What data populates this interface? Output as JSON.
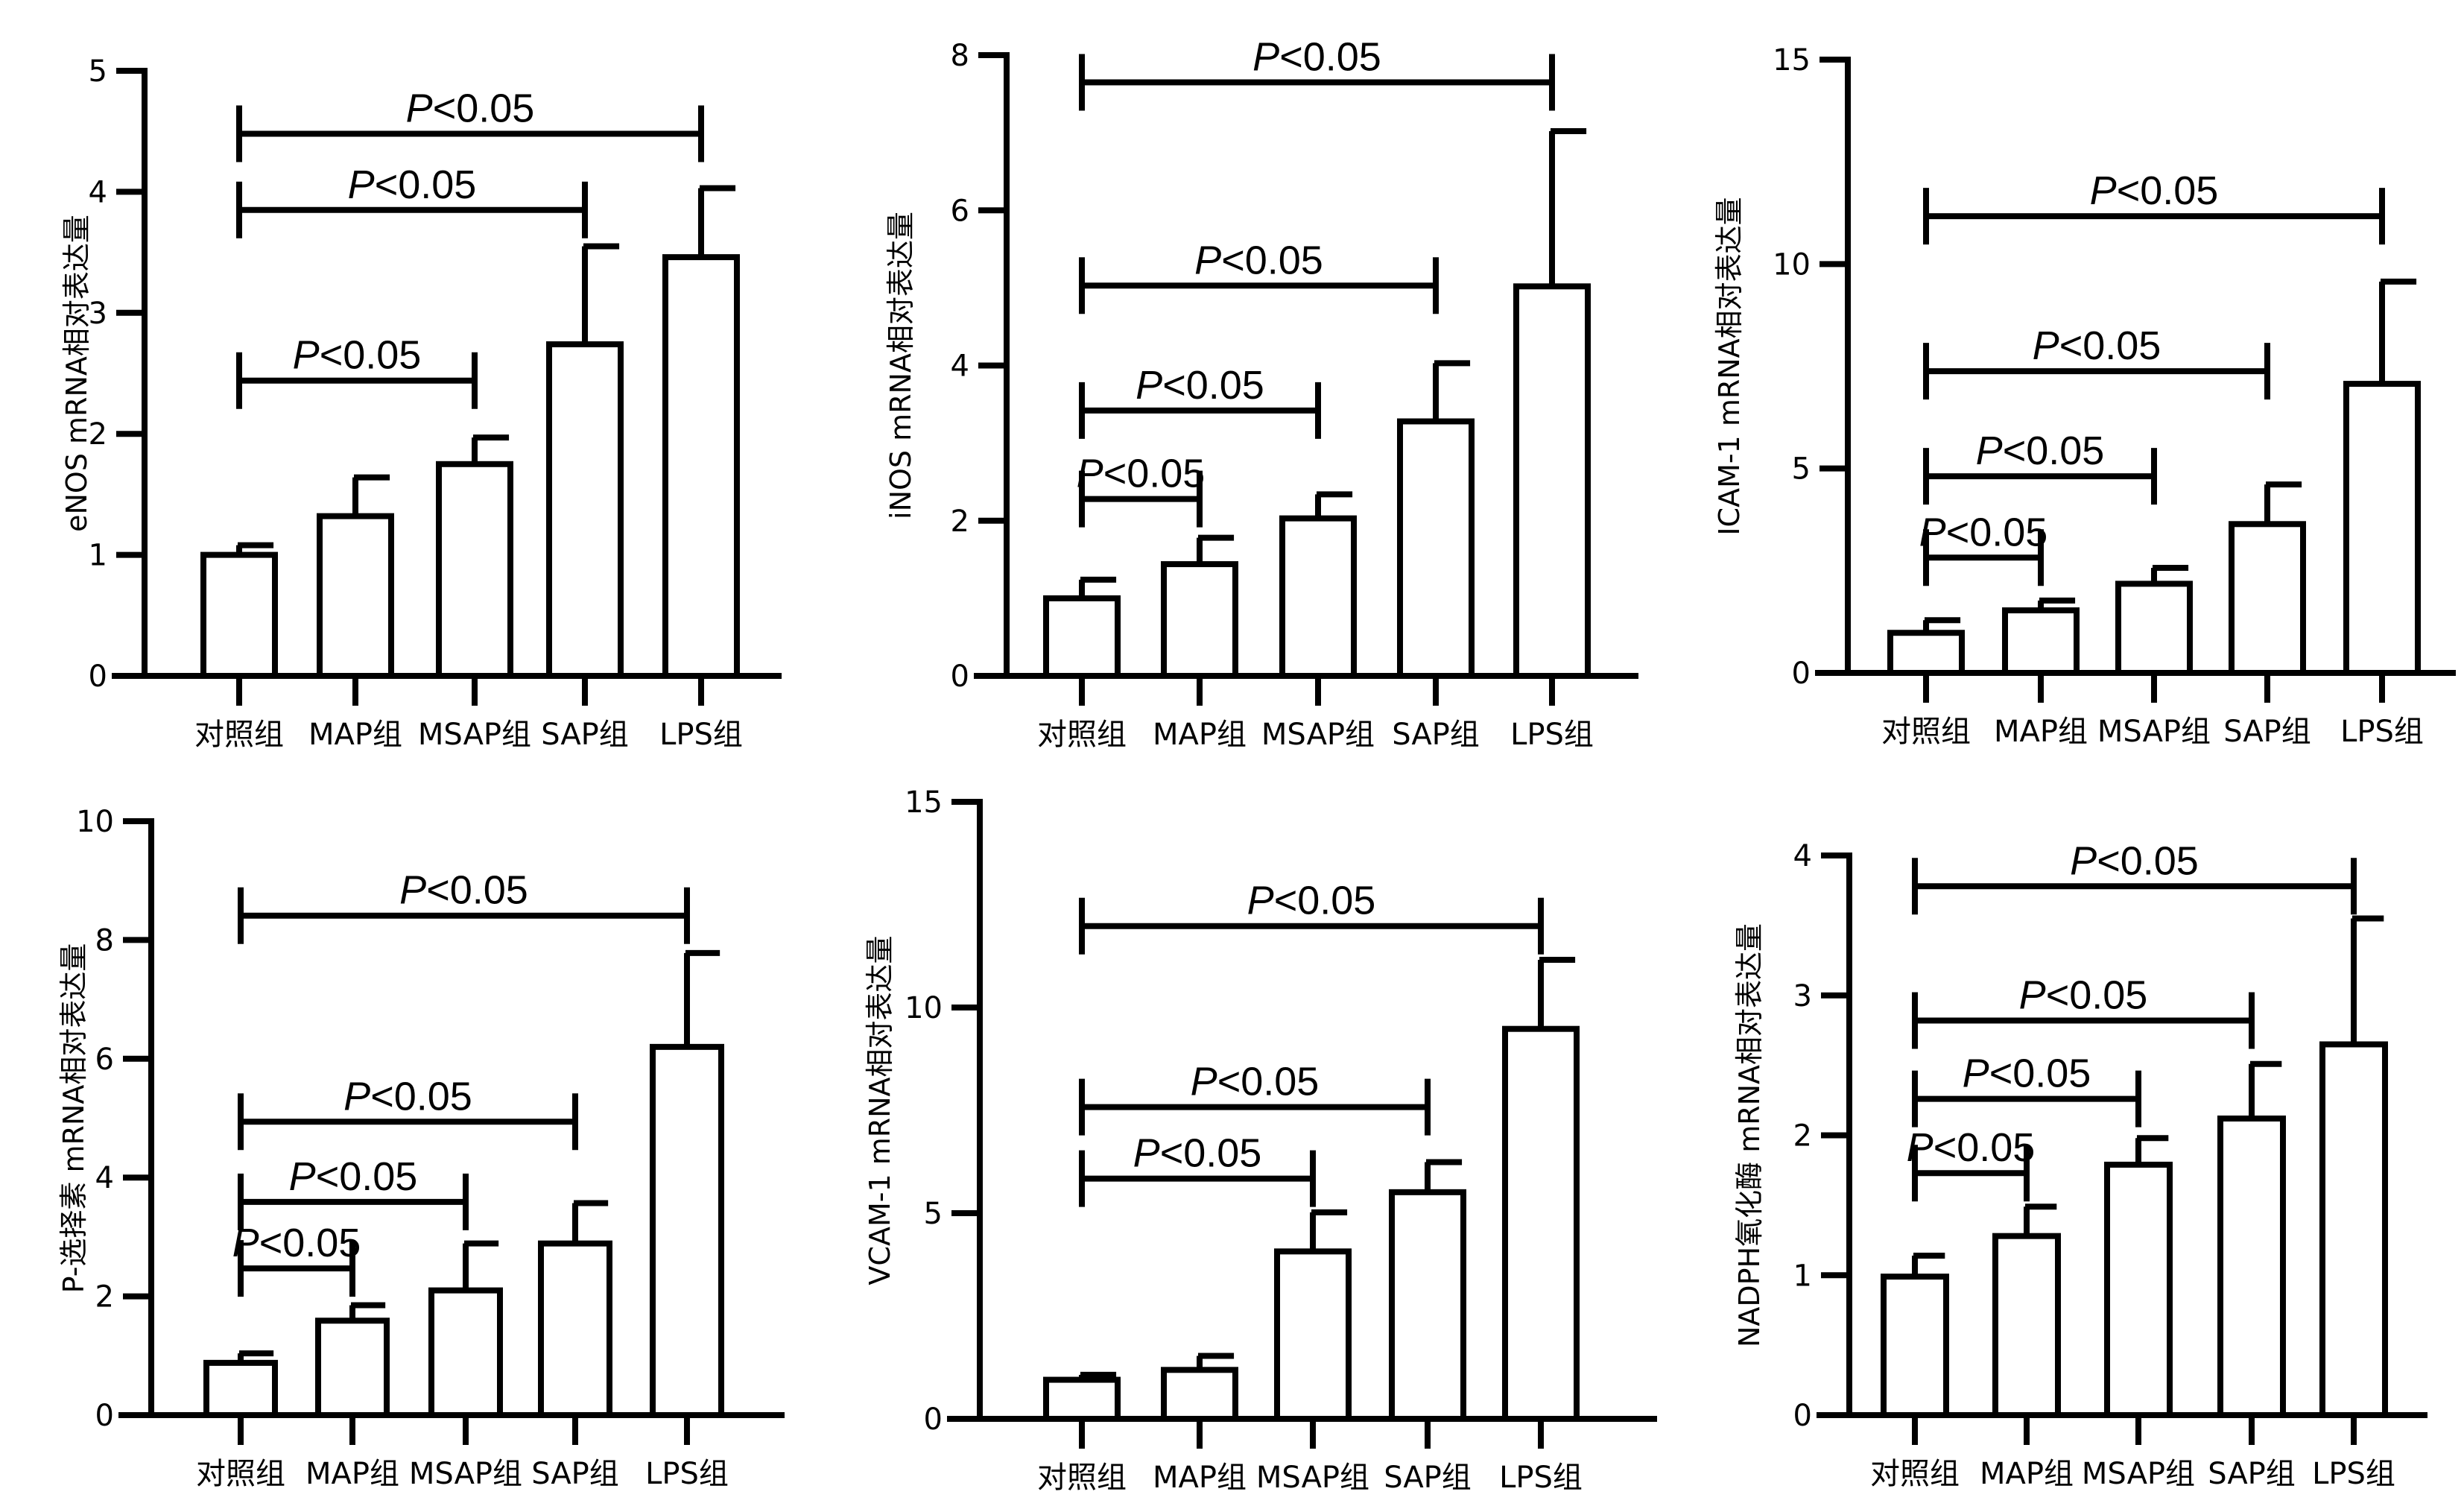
{
  "categories": [
    "对照组",
    "MAP组",
    "MSAP组",
    "SAP组",
    "LPS组"
  ],
  "significance_label_p": "P",
  "significance_label_rest": "<0.05",
  "chart_data": [
    {
      "type": "bar",
      "title": "",
      "xlabel": "",
      "ylabel": "eNOS mRNA相对表达量",
      "categories": [
        "对照组",
        "MAP组",
        "MSAP组",
        "SAP组",
        "LPS组"
      ],
      "values": [
        1.0,
        1.32,
        1.75,
        2.74,
        3.46
      ],
      "error_upper": [
        1.08,
        1.64,
        1.97,
        3.55,
        4.03
      ],
      "ylim": [
        0,
        5
      ],
      "yticks": [
        0,
        1,
        2,
        3,
        4,
        5
      ],
      "grid": false,
      "significance": [
        {
          "from": "对照组",
          "to": "MSAP组",
          "level": 2.44,
          "label": "P<0.05"
        },
        {
          "from": "对照组",
          "to": "SAP组",
          "level": 3.85,
          "label": "P<0.05"
        },
        {
          "from": "对照组",
          "to": "LPS组",
          "level": 4.48,
          "label": "P<0.05"
        }
      ]
    },
    {
      "type": "bar",
      "title": "",
      "xlabel": "",
      "ylabel": "iNOS mRNA相对表达量",
      "categories": [
        "对照组",
        "MAP组",
        "MSAP组",
        "SAP组",
        "LPS组"
      ],
      "values": [
        1.0,
        1.44,
        2.03,
        3.28,
        5.02
      ],
      "error_upper": [
        1.24,
        1.78,
        2.34,
        4.03,
        7.02
      ],
      "ylim": [
        0,
        8
      ],
      "yticks": [
        0,
        2,
        4,
        6,
        8
      ],
      "grid": false,
      "significance": [
        {
          "from": "对照组",
          "to": "MAP组",
          "level": 2.28,
          "label": "P<0.05"
        },
        {
          "from": "对照组",
          "to": "MSAP组",
          "level": 3.42,
          "label": "P<0.05"
        },
        {
          "from": "对照组",
          "to": "SAP组",
          "level": 5.03,
          "label": "P<0.05"
        },
        {
          "from": "对照组",
          "to": "LPS组",
          "level": 7.65,
          "label": "P<0.05"
        }
      ]
    },
    {
      "type": "bar",
      "title": "",
      "xlabel": "",
      "ylabel": "ICAM-1 mRNA相对表达量",
      "categories": [
        "对照组",
        "MAP组",
        "MSAP组",
        "SAP组",
        "LPS组"
      ],
      "values": [
        0.98,
        1.53,
        2.18,
        3.64,
        7.07
      ],
      "error_upper": [
        1.29,
        1.77,
        2.57,
        4.61,
        9.57
      ],
      "ylim": [
        0,
        15
      ],
      "yticks": [
        0,
        5,
        10,
        15
      ],
      "grid": false,
      "significance": [
        {
          "from": "对照组",
          "to": "MAP组",
          "level": 2.82,
          "label": "P<0.05"
        },
        {
          "from": "对照组",
          "to": "MSAP组",
          "level": 4.81,
          "label": "P<0.05"
        },
        {
          "from": "对照组",
          "to": "SAP组",
          "level": 7.38,
          "label": "P<0.05"
        },
        {
          "from": "对照组",
          "to": "LPS组",
          "level": 11.17,
          "label": "P<0.05"
        }
      ]
    },
    {
      "type": "bar",
      "title": "",
      "xlabel": "",
      "ylabel": "P-选择素 mRNA相对表达量",
      "categories": [
        "对照组",
        "MAP组",
        "MSAP组",
        "SAP组",
        "LPS组"
      ],
      "values": [
        0.88,
        1.59,
        2.1,
        2.89,
        6.2
      ],
      "error_upper": [
        1.04,
        1.85,
        2.89,
        3.57,
        7.78
      ],
      "ylim": [
        0,
        10
      ],
      "yticks": [
        0,
        2,
        4,
        6,
        8,
        10
      ],
      "grid": false,
      "significance": [
        {
          "from": "对照组",
          "to": "MAP组",
          "level": 2.47,
          "label": "P<0.05"
        },
        {
          "from": "对照组",
          "to": "MSAP组",
          "level": 3.59,
          "label": "P<0.05"
        },
        {
          "from": "对照组",
          "to": "SAP组",
          "level": 4.94,
          "label": "P<0.05"
        },
        {
          "from": "对照组",
          "to": "LPS组",
          "level": 8.41,
          "label": "P<0.05"
        }
      ]
    },
    {
      "type": "bar",
      "title": "",
      "xlabel": "",
      "ylabel": "VCAM-1 mRNA相对表达量",
      "categories": [
        "对照组",
        "MAP组",
        "MSAP组",
        "SAP组",
        "LPS组"
      ],
      "values": [
        0.95,
        1.19,
        4.07,
        5.51,
        9.48
      ],
      "error_upper": [
        1.07,
        1.53,
        5.02,
        6.24,
        11.16
      ],
      "ylim": [
        0,
        15
      ],
      "yticks": [
        0,
        5,
        10,
        15
      ],
      "grid": false,
      "significance": [
        {
          "from": "对照组",
          "to": "MSAP组",
          "level": 5.84,
          "label": "P<0.05"
        },
        {
          "from": "对照组",
          "to": "SAP组",
          "level": 7.58,
          "label": "P<0.05"
        },
        {
          "from": "对照组",
          "to": "LPS组",
          "level": 11.98,
          "label": "P<0.05"
        }
      ]
    },
    {
      "type": "bar",
      "title": "",
      "xlabel": "",
      "ylabel": "NADPH氧化酶 mRNA相对表达量",
      "categories": [
        "对照组",
        "MAP组",
        "MSAP组",
        "SAP组",
        "LPS组"
      ],
      "values": [
        0.99,
        1.28,
        1.79,
        2.12,
        2.65
      ],
      "error_upper": [
        1.14,
        1.49,
        1.98,
        2.51,
        3.55
      ],
      "ylim": [
        0,
        4
      ],
      "yticks": [
        0,
        1,
        2,
        3,
        4
      ],
      "grid": false,
      "significance": [
        {
          "from": "对照组",
          "to": "MAP组",
          "level": 1.73,
          "label": "P<0.05"
        },
        {
          "from": "对照组",
          "to": "MSAP组",
          "level": 2.26,
          "label": "P<0.05"
        },
        {
          "from": "对照组",
          "to": "SAP组",
          "level": 2.82,
          "label": "P<0.05"
        },
        {
          "from": "对照组",
          "to": "LPS组",
          "level": 3.78,
          "label": "P<0.05"
        }
      ]
    }
  ]
}
